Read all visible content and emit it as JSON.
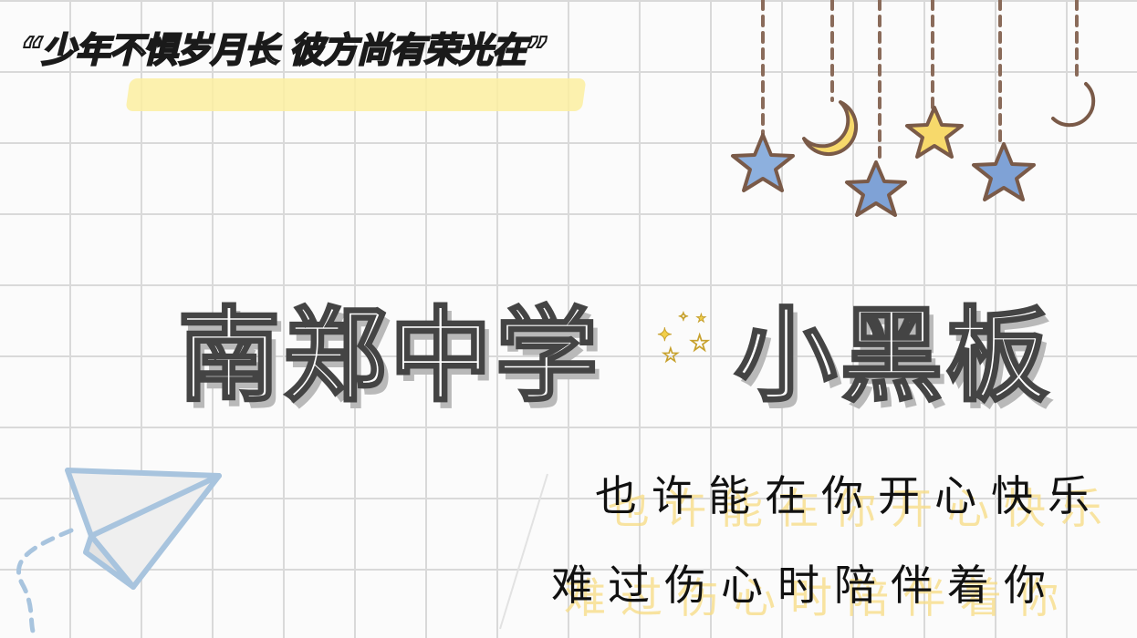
{
  "quote": {
    "text": "“少年不惧岁月长 彼方尚有荣光在”"
  },
  "title": {
    "part1": "南郑中学",
    "part2": "小黑板"
  },
  "lines": {
    "line1": "也许能在你开心快乐",
    "line2": "难过伤心时陪伴着你"
  },
  "icons": [
    "paper-plane-icon",
    "star-icon",
    "crescent-moon-icon",
    "sparkle-icon"
  ],
  "colors": {
    "grid": "#d9d9d9",
    "highlight": "#fbeea0",
    "star_blue": "#8db0de",
    "star_yellow": "#f7d96b",
    "plane": "#a8c4de"
  }
}
